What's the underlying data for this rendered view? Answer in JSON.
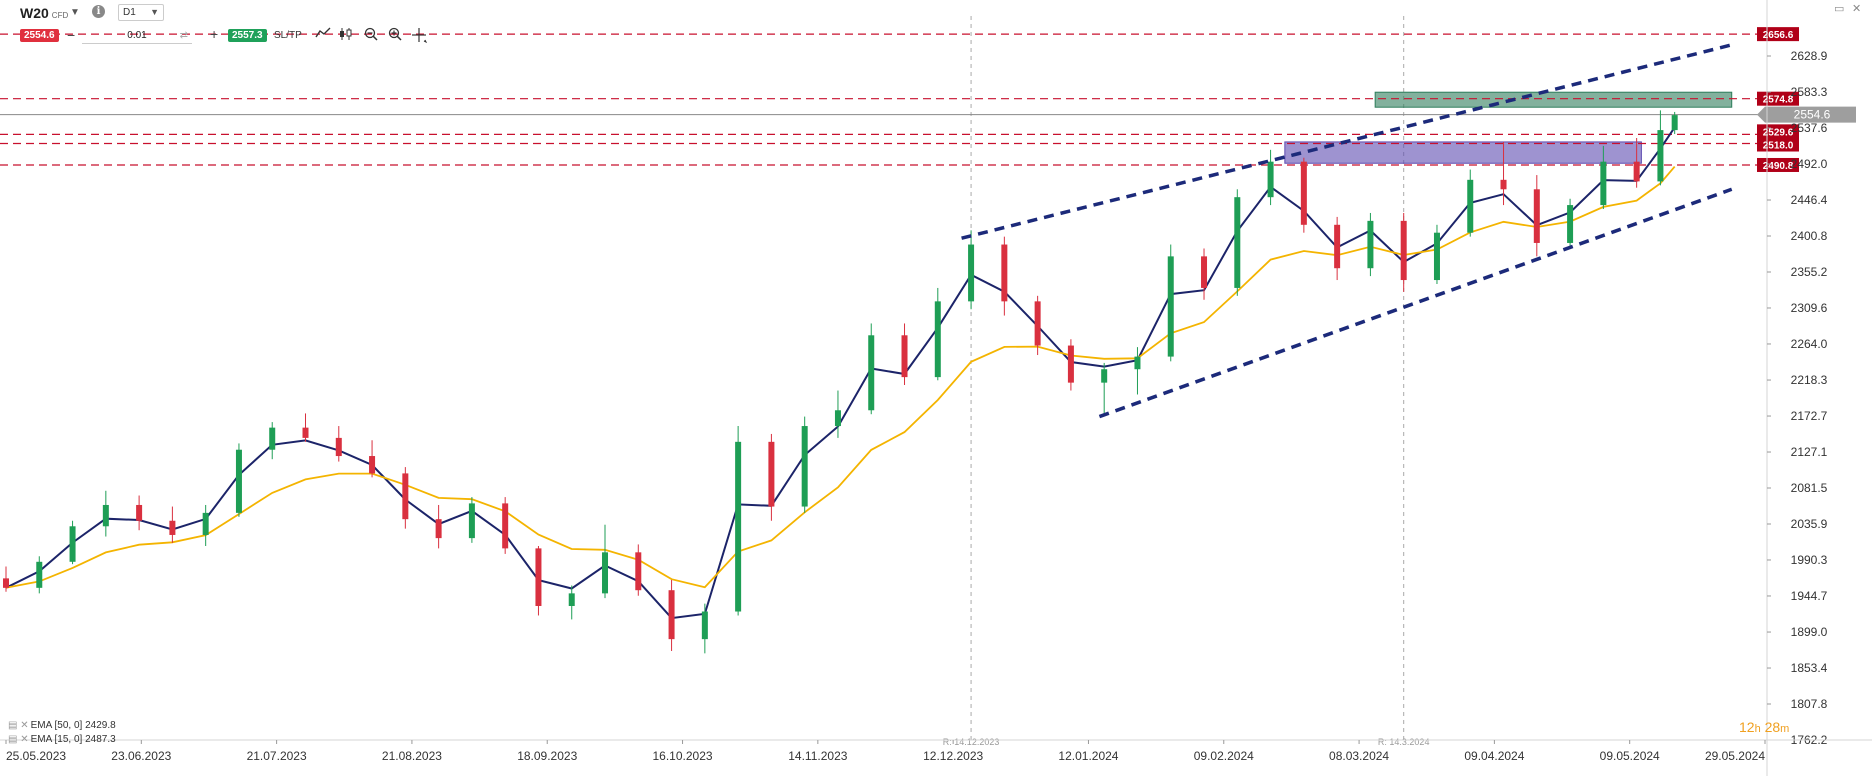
{
  "toolbar": {
    "symbol": "W20",
    "symbol_type": "CFD",
    "timeframe": "D1",
    "sell_price": "2554.6",
    "lot_size": "0.01",
    "buy_price": "2557.3",
    "sltp_label": "SL/TP"
  },
  "icons": [
    "chevron-down-icon",
    "info-icon",
    "swap-icon",
    "line-chart-icon",
    "candlestick-icon",
    "zoom-out-icon",
    "zoom-in-icon",
    "crosshair-icon",
    "window-icon",
    "close-icon"
  ],
  "legend": [
    {
      "label": "EMA [50, 0] 2429.8",
      "color": "#f4b400"
    },
    {
      "label": "EMA [15, 0] 2487.3",
      "color": "#1c2469"
    }
  ],
  "timer": {
    "hours": "12",
    "h_unit": "h",
    "minutes": "28",
    "m_unit": "m"
  },
  "annotations": {
    "marker_1": "R: 14.12.2023",
    "marker_2": "R: 14.3.2024"
  },
  "chart_data": {
    "type": "candlestick",
    "symbol": "W20",
    "timeframe": "D1",
    "x_range": [
      "2023-05-25",
      "2024-05-29"
    ],
    "x_tick_labels": [
      "25.05.2023",
      "23.06.2023",
      "21.07.2023",
      "21.08.2023",
      "18.09.2023",
      "16.10.2023",
      "14.11.2023",
      "12.12.2023",
      "12.01.2024",
      "09.02.2024",
      "08.03.2024",
      "09.04.2024",
      "09.05.2024",
      "29.05.2024"
    ],
    "y_range": [
      1762.2,
      2674.5
    ],
    "y_tick_labels": [
      "2628.9",
      "2583.3",
      "2537.6",
      "2492.0",
      "2446.4",
      "2400.8",
      "2355.2",
      "2309.6",
      "2264.0",
      "2218.3",
      "2172.7",
      "2127.1",
      "2081.5",
      "2035.9",
      "1990.3",
      "1944.7",
      "1899.0",
      "1853.4",
      "1807.8",
      "1762.2"
    ],
    "current_price": 2554.6,
    "horizontal_levels": [
      {
        "label": "2656.6",
        "value": 2656.6,
        "color": "#c8102e"
      },
      {
        "label": "2574.8",
        "value": 2574.8,
        "color": "#c8102e"
      },
      {
        "label": "2529.6",
        "value": 2529.6,
        "color": "#c8102e"
      },
      {
        "label": "2518.0",
        "value": 2518.0,
        "color": "#c8102e"
      },
      {
        "label": "2490.8",
        "value": 2490.8,
        "color": "#c8102e"
      }
    ],
    "zones": [
      {
        "name": "resistance",
        "from_date": "2024-03-08",
        "to_date": "2024-05-22",
        "low": 2564,
        "high": 2583,
        "color": "#2e7d5b"
      },
      {
        "name": "support",
        "from_date": "2024-02-18",
        "to_date": "2024-05-03",
        "low": 2493,
        "high": 2520,
        "color": "#5d4bb0"
      }
    ],
    "trendlines": [
      {
        "name": "channel-upper",
        "points": [
          [
            "2023-12-12",
            2398
          ],
          [
            "2024-05-22",
            2643
          ]
        ]
      },
      {
        "name": "channel-lower",
        "points": [
          [
            "2024-01-10",
            2172
          ],
          [
            "2024-05-22",
            2460
          ]
        ]
      }
    ],
    "vertical_markers": [
      "2023-12-14",
      "2024-03-14"
    ],
    "ohlc": [
      [
        "2023-05-25",
        1967,
        1982,
        1950,
        1955
      ],
      [
        "2023-06-01",
        1955,
        1995,
        1948,
        1988
      ],
      [
        "2023-06-08",
        1988,
        2040,
        1985,
        2033
      ],
      [
        "2023-06-15",
        2033,
        2078,
        2020,
        2060
      ],
      [
        "2023-06-22",
        2060,
        2072,
        2028,
        2040
      ],
      [
        "2023-06-29",
        2040,
        2058,
        2012,
        2022
      ],
      [
        "2023-07-06",
        2022,
        2060,
        2008,
        2050
      ],
      [
        "2023-07-13",
        2050,
        2138,
        2045,
        2130
      ],
      [
        "2023-07-20",
        2130,
        2165,
        2118,
        2158
      ],
      [
        "2023-07-27",
        2158,
        2176,
        2140,
        2145
      ],
      [
        "2023-08-03",
        2145,
        2160,
        2115,
        2122
      ],
      [
        "2023-08-10",
        2122,
        2142,
        2095,
        2100
      ],
      [
        "2023-08-17",
        2100,
        2108,
        2030,
        2042
      ],
      [
        "2023-08-24",
        2042,
        2060,
        2005,
        2018
      ],
      [
        "2023-08-31",
        2018,
        2070,
        2012,
        2062
      ],
      [
        "2023-09-07",
        2062,
        2070,
        1998,
        2005
      ],
      [
        "2023-09-14",
        2005,
        2008,
        1920,
        1932
      ],
      [
        "2023-09-21",
        1932,
        1958,
        1915,
        1948
      ],
      [
        "2023-09-28",
        1948,
        2035,
        1942,
        2000
      ],
      [
        "2023-10-05",
        2000,
        2010,
        1945,
        1952
      ],
      [
        "2023-10-12",
        1952,
        1965,
        1875,
        1890
      ],
      [
        "2023-10-19",
        1890,
        1935,
        1872,
        1925
      ],
      [
        "2023-10-26",
        1925,
        2160,
        1920,
        2140
      ],
      [
        "2023-11-02",
        2140,
        2150,
        2040,
        2058
      ],
      [
        "2023-11-09",
        2058,
        2172,
        2050,
        2160
      ],
      [
        "2023-11-16",
        2160,
        2205,
        2145,
        2180
      ],
      [
        "2023-11-23",
        2180,
        2290,
        2175,
        2275
      ],
      [
        "2023-11-30",
        2275,
        2290,
        2212,
        2222
      ],
      [
        "2023-12-07",
        2222,
        2335,
        2218,
        2318
      ],
      [
        "2023-12-14",
        2318,
        2408,
        2308,
        2390
      ],
      [
        "2023-12-21",
        2390,
        2400,
        2300,
        2318
      ],
      [
        "2023-12-28",
        2318,
        2325,
        2250,
        2262
      ],
      [
        "2024-01-04",
        2262,
        2270,
        2205,
        2215
      ],
      [
        "2024-01-11",
        2215,
        2240,
        2175,
        2232
      ],
      [
        "2024-01-18",
        2232,
        2260,
        2200,
        2248
      ],
      [
        "2024-01-25",
        2248,
        2390,
        2242,
        2375
      ],
      [
        "2024-02-01",
        2375,
        2385,
        2320,
        2335
      ],
      [
        "2024-02-08",
        2335,
        2460,
        2325,
        2450
      ],
      [
        "2024-02-15",
        2450,
        2510,
        2440,
        2495
      ],
      [
        "2024-02-22",
        2495,
        2500,
        2405,
        2415
      ],
      [
        "2024-02-29",
        2415,
        2425,
        2345,
        2360
      ],
      [
        "2024-03-07",
        2360,
        2430,
        2350,
        2420
      ],
      [
        "2024-03-14",
        2420,
        2430,
        2330,
        2345
      ],
      [
        "2024-03-21",
        2345,
        2415,
        2340,
        2405
      ],
      [
        "2024-03-28",
        2405,
        2485,
        2400,
        2472
      ],
      [
        "2024-04-04",
        2472,
        2520,
        2440,
        2460
      ],
      [
        "2024-04-11",
        2460,
        2478,
        2375,
        2392
      ],
      [
        "2024-04-18",
        2392,
        2448,
        2385,
        2440
      ],
      [
        "2024-04-25",
        2440,
        2515,
        2435,
        2495
      ],
      [
        "2024-05-02",
        2495,
        2525,
        2462,
        2470
      ],
      [
        "2024-05-07",
        2470,
        2560,
        2465,
        2535
      ],
      [
        "2024-05-10",
        2535,
        2558,
        2530,
        2554
      ]
    ],
    "ema_series": [
      {
        "label": "EMA [15, 0]",
        "period": 15,
        "color": "#1c2469"
      },
      {
        "label": "EMA [50, 0]",
        "period": 50,
        "color": "#f4b400"
      }
    ]
  }
}
